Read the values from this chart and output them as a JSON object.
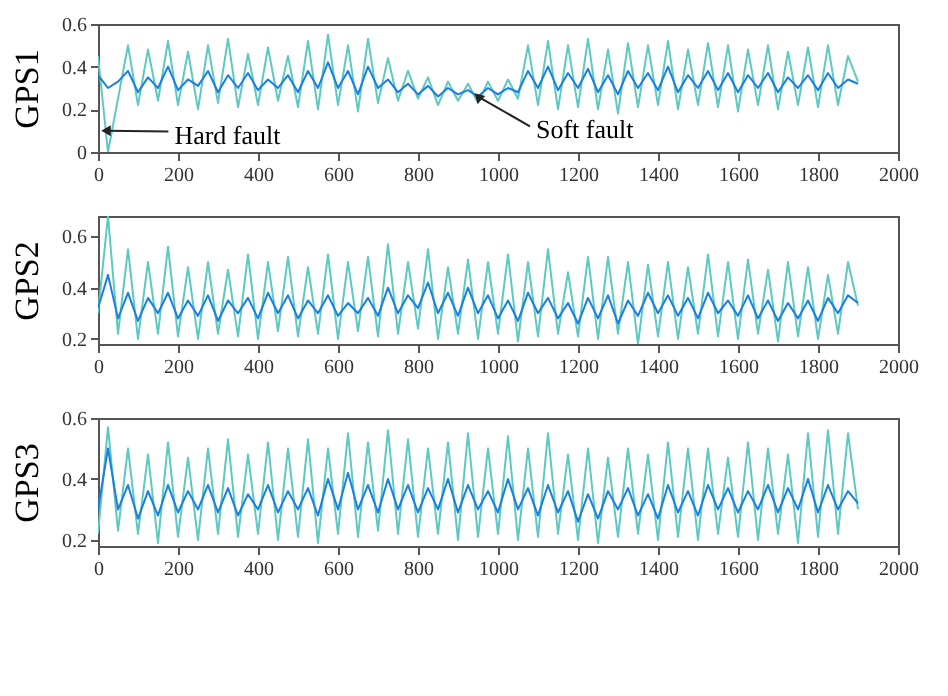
{
  "chart_data": [
    {
      "type": "line",
      "ylabel": "GPS1",
      "xlim": [
        0,
        2000
      ],
      "xticks": [
        0,
        200,
        400,
        600,
        800,
        1000,
        1200,
        1400,
        1600,
        1800,
        2000
      ],
      "ylim": [
        0,
        0.6
      ],
      "yticks": [
        0,
        0.2,
        0.4,
        0.6
      ],
      "x": [
        0,
        25,
        50,
        75,
        100,
        125,
        150,
        175,
        200,
        225,
        250,
        275,
        300,
        325,
        350,
        375,
        400,
        425,
        450,
        475,
        500,
        525,
        550,
        575,
        600,
        625,
        650,
        675,
        700,
        725,
        750,
        775,
        800,
        825,
        850,
        875,
        900,
        925,
        950,
        975,
        1000,
        1025,
        1050,
        1075,
        1100,
        1125,
        1150,
        1175,
        1200,
        1225,
        1250,
        1275,
        1300,
        1325,
        1350,
        1375,
        1400,
        1425,
        1450,
        1475,
        1500,
        1525,
        1550,
        1575,
        1600,
        1625,
        1650,
        1675,
        1700,
        1725,
        1750,
        1775,
        1800,
        1825,
        1850,
        1875,
        1900
      ],
      "series": [
        {
          "color": "#5ec9c0",
          "values": [
            0.45,
            0.0,
            0.25,
            0.5,
            0.22,
            0.48,
            0.24,
            0.52,
            0.22,
            0.47,
            0.2,
            0.5,
            0.23,
            0.53,
            0.21,
            0.46,
            0.22,
            0.49,
            0.24,
            0.45,
            0.21,
            0.52,
            0.2,
            0.55,
            0.22,
            0.5,
            0.19,
            0.53,
            0.23,
            0.44,
            0.24,
            0.38,
            0.25,
            0.35,
            0.22,
            0.33,
            0.24,
            0.32,
            0.23,
            0.33,
            0.24,
            0.34,
            0.25,
            0.5,
            0.22,
            0.52,
            0.2,
            0.5,
            0.21,
            0.53,
            0.2,
            0.48,
            0.18,
            0.51,
            0.21,
            0.5,
            0.22,
            0.52,
            0.2,
            0.48,
            0.22,
            0.51,
            0.21,
            0.5,
            0.19,
            0.48,
            0.22,
            0.5,
            0.2,
            0.47,
            0.22,
            0.49,
            0.21,
            0.5,
            0.22,
            0.45,
            0.33
          ]
        },
        {
          "color": "#1b7fe0",
          "values": [
            0.36,
            0.3,
            0.33,
            0.38,
            0.28,
            0.35,
            0.3,
            0.4,
            0.29,
            0.34,
            0.31,
            0.38,
            0.28,
            0.36,
            0.3,
            0.37,
            0.29,
            0.34,
            0.3,
            0.36,
            0.28,
            0.38,
            0.3,
            0.42,
            0.3,
            0.38,
            0.27,
            0.4,
            0.3,
            0.34,
            0.28,
            0.32,
            0.27,
            0.31,
            0.26,
            0.3,
            0.27,
            0.29,
            0.26,
            0.3,
            0.27,
            0.3,
            0.28,
            0.38,
            0.3,
            0.4,
            0.29,
            0.37,
            0.3,
            0.39,
            0.28,
            0.36,
            0.27,
            0.38,
            0.3,
            0.37,
            0.29,
            0.4,
            0.28,
            0.36,
            0.3,
            0.38,
            0.29,
            0.37,
            0.28,
            0.36,
            0.3,
            0.37,
            0.28,
            0.35,
            0.3,
            0.36,
            0.29,
            0.37,
            0.3,
            0.34,
            0.32
          ]
        }
      ],
      "annotations": [
        {
          "text": "Hard fault",
          "x": 20,
          "y": 0.1
        },
        {
          "text": "Soft fault",
          "x": 950,
          "y": 0.26
        }
      ]
    },
    {
      "type": "line",
      "ylabel": "GPS2",
      "xlim": [
        0,
        2000
      ],
      "xticks": [
        0,
        200,
        400,
        600,
        800,
        1000,
        1200,
        1400,
        1600,
        1800,
        2000
      ],
      "ylim": [
        0.18,
        0.68
      ],
      "yticks": [
        0.2,
        0.4,
        0.6
      ],
      "x": [
        0,
        25,
        50,
        75,
        100,
        125,
        150,
        175,
        200,
        225,
        250,
        275,
        300,
        325,
        350,
        375,
        400,
        425,
        450,
        475,
        500,
        525,
        550,
        575,
        600,
        625,
        650,
        675,
        700,
        725,
        750,
        775,
        800,
        825,
        850,
        875,
        900,
        925,
        950,
        975,
        1000,
        1025,
        1050,
        1075,
        1100,
        1125,
        1150,
        1175,
        1200,
        1225,
        1250,
        1275,
        1300,
        1325,
        1350,
        1375,
        1400,
        1425,
        1450,
        1475,
        1500,
        1525,
        1550,
        1575,
        1600,
        1625,
        1650,
        1675,
        1700,
        1725,
        1750,
        1775,
        1800,
        1825,
        1850,
        1875,
        1900
      ],
      "series": [
        {
          "color": "#5ec9c0",
          "values": [
            0.3,
            0.68,
            0.22,
            0.55,
            0.2,
            0.5,
            0.22,
            0.56,
            0.21,
            0.48,
            0.2,
            0.5,
            0.22,
            0.47,
            0.21,
            0.53,
            0.2,
            0.5,
            0.23,
            0.52,
            0.21,
            0.48,
            0.22,
            0.53,
            0.2,
            0.5,
            0.23,
            0.52,
            0.21,
            0.57,
            0.22,
            0.5,
            0.24,
            0.55,
            0.2,
            0.48,
            0.22,
            0.51,
            0.2,
            0.5,
            0.22,
            0.53,
            0.19,
            0.5,
            0.21,
            0.55,
            0.22,
            0.46,
            0.21,
            0.52,
            0.2,
            0.52,
            0.22,
            0.5,
            0.18,
            0.49,
            0.21,
            0.5,
            0.2,
            0.48,
            0.22,
            0.53,
            0.21,
            0.5,
            0.2,
            0.51,
            0.22,
            0.47,
            0.19,
            0.5,
            0.21,
            0.48,
            0.2,
            0.45,
            0.22,
            0.5,
            0.33
          ]
        },
        {
          "color": "#1b7fe0",
          "values": [
            0.32,
            0.45,
            0.28,
            0.38,
            0.27,
            0.36,
            0.3,
            0.38,
            0.28,
            0.35,
            0.29,
            0.37,
            0.27,
            0.35,
            0.3,
            0.36,
            0.28,
            0.38,
            0.3,
            0.37,
            0.28,
            0.35,
            0.3,
            0.37,
            0.29,
            0.34,
            0.3,
            0.36,
            0.29,
            0.4,
            0.3,
            0.37,
            0.32,
            0.42,
            0.3,
            0.38,
            0.29,
            0.4,
            0.3,
            0.37,
            0.28,
            0.35,
            0.27,
            0.38,
            0.3,
            0.36,
            0.28,
            0.34,
            0.26,
            0.36,
            0.28,
            0.37,
            0.26,
            0.35,
            0.29,
            0.38,
            0.3,
            0.37,
            0.29,
            0.36,
            0.28,
            0.38,
            0.3,
            0.35,
            0.29,
            0.37,
            0.28,
            0.35,
            0.27,
            0.34,
            0.28,
            0.35,
            0.27,
            0.36,
            0.3,
            0.37,
            0.34
          ]
        }
      ]
    },
    {
      "type": "line",
      "ylabel": "GPS3",
      "xlim": [
        0,
        2000
      ],
      "xticks": [
        0,
        200,
        400,
        600,
        800,
        1000,
        1200,
        1400,
        1600,
        1800,
        2000
      ],
      "ylim": [
        0.18,
        0.6
      ],
      "yticks": [
        0.2,
        0.4,
        0.6
      ],
      "x": [
        0,
        25,
        50,
        75,
        100,
        125,
        150,
        175,
        200,
        225,
        250,
        275,
        300,
        325,
        350,
        375,
        400,
        425,
        450,
        475,
        500,
        525,
        550,
        575,
        600,
        625,
        650,
        675,
        700,
        725,
        750,
        775,
        800,
        825,
        850,
        875,
        900,
        925,
        950,
        975,
        1000,
        1025,
        1050,
        1075,
        1100,
        1125,
        1150,
        1175,
        1200,
        1225,
        1250,
        1275,
        1300,
        1325,
        1350,
        1375,
        1400,
        1425,
        1450,
        1475,
        1500,
        1525,
        1550,
        1575,
        1600,
        1625,
        1650,
        1675,
        1700,
        1725,
        1750,
        1775,
        1800,
        1825,
        1850,
        1875,
        1900
      ],
      "series": [
        {
          "color": "#5ec9c0",
          "values": [
            0.22,
            0.57,
            0.23,
            0.5,
            0.22,
            0.48,
            0.19,
            0.52,
            0.21,
            0.47,
            0.2,
            0.5,
            0.22,
            0.53,
            0.21,
            0.48,
            0.22,
            0.52,
            0.2,
            0.5,
            0.21,
            0.53,
            0.19,
            0.5,
            0.22,
            0.55,
            0.21,
            0.52,
            0.23,
            0.56,
            0.22,
            0.53,
            0.21,
            0.5,
            0.22,
            0.52,
            0.2,
            0.55,
            0.21,
            0.5,
            0.22,
            0.54,
            0.2,
            0.5,
            0.21,
            0.55,
            0.22,
            0.48,
            0.2,
            0.5,
            0.19,
            0.47,
            0.21,
            0.5,
            0.22,
            0.48,
            0.2,
            0.52,
            0.21,
            0.5,
            0.2,
            0.5,
            0.22,
            0.47,
            0.21,
            0.52,
            0.2,
            0.5,
            0.22,
            0.48,
            0.19,
            0.55,
            0.21,
            0.56,
            0.22,
            0.55,
            0.3
          ]
        },
        {
          "color": "#1b7fe0",
          "values": [
            0.3,
            0.5,
            0.3,
            0.38,
            0.27,
            0.36,
            0.28,
            0.38,
            0.29,
            0.36,
            0.3,
            0.38,
            0.29,
            0.37,
            0.28,
            0.35,
            0.3,
            0.38,
            0.29,
            0.36,
            0.3,
            0.37,
            0.28,
            0.4,
            0.3,
            0.42,
            0.3,
            0.38,
            0.29,
            0.4,
            0.3,
            0.38,
            0.29,
            0.37,
            0.3,
            0.4,
            0.29,
            0.38,
            0.3,
            0.36,
            0.29,
            0.4,
            0.3,
            0.37,
            0.28,
            0.38,
            0.29,
            0.36,
            0.26,
            0.35,
            0.27,
            0.36,
            0.3,
            0.37,
            0.28,
            0.35,
            0.27,
            0.38,
            0.29,
            0.36,
            0.28,
            0.38,
            0.3,
            0.37,
            0.29,
            0.36,
            0.3,
            0.38,
            0.29,
            0.37,
            0.3,
            0.4,
            0.29,
            0.38,
            0.3,
            0.36,
            0.32
          ]
        }
      ]
    }
  ]
}
